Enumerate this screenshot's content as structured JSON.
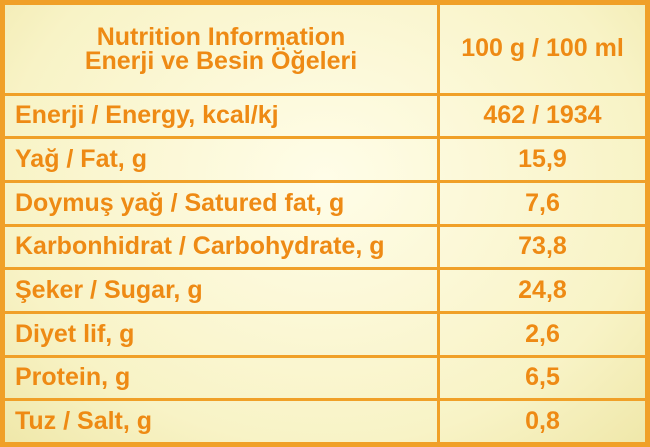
{
  "header": {
    "title_line1": "Nutrition Information",
    "title_line2": "Enerji ve Besin Öğeleri",
    "per_unit": "100 g / 100 ml"
  },
  "rows": [
    {
      "label": "Enerji / Energy, kcal/kj",
      "value": "462 / 1934"
    },
    {
      "label": "Yağ / Fat, g",
      "value": "15,9"
    },
    {
      "label": "Doymuş yağ / Satured fat, g",
      "value": "7,6"
    },
    {
      "label": "Karbonhidrat / Carbohydrate, g",
      "value": "73,8"
    },
    {
      "label": "Şeker / Sugar, g",
      "value": "24,8"
    },
    {
      "label": "Diyet lif, g",
      "value": "2,6"
    },
    {
      "label": "Protein, g",
      "value": "6,5"
    },
    {
      "label": "Tuz / Salt, g",
      "value": "0,8"
    }
  ],
  "colors": {
    "accent": "#f0a028",
    "text": "#ee8a14",
    "background": "#f8f3c6"
  }
}
